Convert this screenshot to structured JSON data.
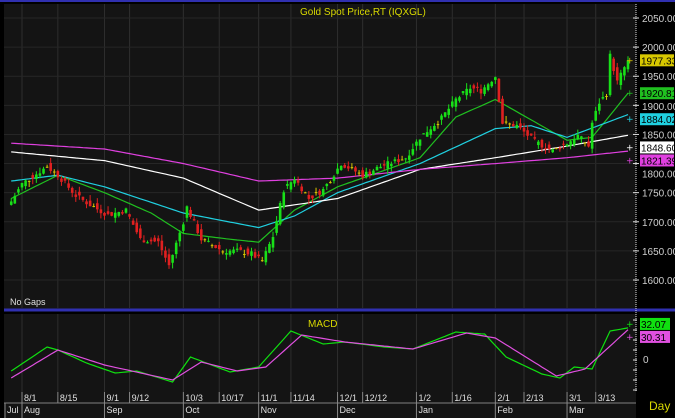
{
  "colors": {
    "background": "#141414",
    "up": "#18e018",
    "down": "#e02020",
    "doji": "#d8c800",
    "title": "#d8d800",
    "frame": "#3030b0",
    "ma20": "#20c020",
    "ma50": "#20d0e0",
    "ma100": "#ffffff",
    "ma200": "#e040e0",
    "macd": "#10e010",
    "signal": "#e050e0"
  },
  "chart_data": [
    {
      "type": "candlestick",
      "title": "Gold Spot Price,RT (IQXGL)",
      "note": "No Gaps",
      "ylim": [
        1580,
        2075
      ],
      "yticks": [
        1600,
        1650,
        1700,
        1750,
        1800,
        1850,
        1900,
        1950,
        2000,
        2050
      ],
      "ytick_labels": [
        "1600.00",
        "1650.00",
        "1700.00",
        "1750.00",
        "1800.00",
        "1850.00",
        "1900.00",
        "1950.00",
        "2000.00",
        "2050.00"
      ],
      "close_keypoints": [
        [
          "7/27",
          1735
        ],
        [
          "8/1",
          1765
        ],
        [
          "8/10",
          1795
        ],
        [
          "8/15",
          1780
        ],
        [
          "8/22",
          1745
        ],
        [
          "8/29",
          1725
        ],
        [
          "9/2",
          1712
        ],
        [
          "9/9",
          1720
        ],
        [
          "9/15",
          1670
        ],
        [
          "9/22",
          1665
        ],
        [
          "9/27",
          1625
        ],
        [
          "10/3",
          1700
        ],
        [
          "10/4",
          1725
        ],
        [
          "10/10",
          1670
        ],
        [
          "10/18",
          1650
        ],
        [
          "10/24",
          1650
        ],
        [
          "10/28",
          1645
        ],
        [
          "11/2",
          1632
        ],
        [
          "11/7",
          1675
        ],
        [
          "11/10",
          1755
        ],
        [
          "11/15",
          1775
        ],
        [
          "11/21",
          1740
        ],
        [
          "11/25",
          1755
        ],
        [
          "12/2",
          1800
        ],
        [
          "12/12",
          1780
        ],
        [
          "12/19",
          1795
        ],
        [
          "12/28",
          1810
        ],
        [
          "1/3",
          1845
        ],
        [
          "1/11",
          1878
        ],
        [
          "1/17",
          1910
        ],
        [
          "1/23",
          1930
        ],
        [
          "1/26",
          1925
        ],
        [
          "2/1",
          1950
        ],
        [
          "2/3",
          1870
        ],
        [
          "2/9",
          1865
        ],
        [
          "2/16",
          1838
        ],
        [
          "2/23",
          1822
        ],
        [
          "3/1",
          1835
        ],
        [
          "3/6",
          1848
        ],
        [
          "3/9",
          1830
        ],
        [
          "3/10",
          1870
        ],
        [
          "3/14",
          1905
        ],
        [
          "3/16",
          1920
        ],
        [
          "3/17",
          1985
        ],
        [
          "3/21",
          1940
        ],
        [
          "3/24",
          1977.33
        ]
      ],
      "moving_averages": [
        {
          "key": "ma20",
          "last": "1920.81",
          "points": [
            [
              "7/27",
              1740
            ],
            [
              "8/15",
              1780
            ],
            [
              "9/1",
              1750
            ],
            [
              "9/20",
              1715
            ],
            [
              "10/3",
              1680
            ],
            [
              "10/20",
              1670
            ],
            [
              "11/1",
              1665
            ],
            [
              "11/15",
              1720
            ],
            [
              "12/1",
              1760
            ],
            [
              "1/3",
              1810
            ],
            [
              "1/17",
              1880
            ],
            [
              "2/1",
              1910
            ],
            [
              "2/15",
              1875
            ],
            [
              "3/1",
              1840
            ],
            [
              "3/10",
              1845
            ],
            [
              "3/24",
              1920.81
            ]
          ]
        },
        {
          "key": "ma50",
          "last": "1884.02",
          "points": [
            [
              "7/27",
              1770
            ],
            [
              "8/15",
              1780
            ],
            [
              "9/1",
              1760
            ],
            [
              "10/3",
              1715
            ],
            [
              "11/1",
              1690
            ],
            [
              "11/15",
              1710
            ],
            [
              "12/1",
              1750
            ],
            [
              "1/3",
              1800
            ],
            [
              "2/1",
              1860
            ],
            [
              "2/15",
              1865
            ],
            [
              "3/1",
              1845
            ],
            [
              "3/24",
              1884.02
            ]
          ]
        },
        {
          "key": "ma100",
          "last": "1848.60",
          "points": [
            [
              "7/27",
              1820
            ],
            [
              "9/1",
              1805
            ],
            [
              "10/3",
              1775
            ],
            [
              "11/1",
              1720
            ],
            [
              "12/1",
              1740
            ],
            [
              "1/3",
              1790
            ],
            [
              "2/1",
              1810
            ],
            [
              "3/1",
              1830
            ],
            [
              "3/24",
              1848.6
            ]
          ]
        },
        {
          "key": "ma200",
          "last": "1821.39",
          "points": [
            [
              "7/27",
              1835
            ],
            [
              "9/1",
              1825
            ],
            [
              "10/3",
              1800
            ],
            [
              "11/1",
              1770
            ],
            [
              "12/1",
              1775
            ],
            [
              "1/3",
              1790
            ],
            [
              "2/1",
              1800
            ],
            [
              "3/1",
              1810
            ],
            [
              "3/24",
              1821.39
            ]
          ]
        }
      ],
      "last_price": "1977.33"
    },
    {
      "type": "line",
      "title": "MACD",
      "ylim": [
        -32,
        44
      ],
      "ytick_labels": [
        "0"
      ],
      "series": [
        {
          "key": "macd",
          "last": "32.07",
          "points": [
            [
              "7/27",
              -11
            ],
            [
              "8/10",
              13
            ],
            [
              "8/15",
              10
            ],
            [
              "8/25",
              -3
            ],
            [
              "9/6",
              -13
            ],
            [
              "9/14",
              -11
            ],
            [
              "9/28",
              -22
            ],
            [
              "10/5",
              3
            ],
            [
              "10/20",
              -12
            ],
            [
              "11/1",
              -7
            ],
            [
              "11/14",
              29
            ],
            [
              "11/25",
              16
            ],
            [
              "12/5",
              18
            ],
            [
              "12/20",
              13
            ],
            [
              "12/30",
              11
            ],
            [
              "1/17",
              28
            ],
            [
              "1/27",
              26
            ],
            [
              "2/6",
              3
            ],
            [
              "2/20",
              -14
            ],
            [
              "2/27",
              -18
            ],
            [
              "3/3",
              -7
            ],
            [
              "3/10",
              -9
            ],
            [
              "3/17",
              29
            ],
            [
              "3/24",
              32.07
            ]
          ]
        },
        {
          "key": "signal",
          "last": "30.31",
          "points": [
            [
              "7/27",
              -18
            ],
            [
              "8/15",
              10
            ],
            [
              "9/1",
              -5
            ],
            [
              "9/28",
              -20
            ],
            [
              "10/10",
              -2
            ],
            [
              "10/24",
              -11
            ],
            [
              "11/3",
              -7
            ],
            [
              "11/17",
              25
            ],
            [
              "12/5",
              18
            ],
            [
              "12/30",
              11
            ],
            [
              "1/20",
              27
            ],
            [
              "2/1",
              22
            ],
            [
              "2/24",
              -16
            ],
            [
              "3/8",
              -9
            ],
            [
              "3/24",
              30.31
            ]
          ]
        }
      ]
    }
  ],
  "x_axis": {
    "day_ticks": [
      "8/1",
      "8/15",
      "9/1",
      "9/12",
      "10/3",
      "10/17",
      "11/1",
      "11/14",
      "12/1",
      "12/12",
      "1/2",
      "1/16",
      "2/1",
      "2/13",
      "3/1",
      "3/13"
    ],
    "month_ticks": [
      [
        "7/27",
        "Jul"
      ],
      [
        "8/1",
        "Aug"
      ],
      [
        "9/1",
        "Sep"
      ],
      [
        "10/3",
        "Oct"
      ],
      [
        "11/1",
        "Nov"
      ],
      [
        "12/1",
        "Dec"
      ],
      [
        "1/2",
        "Jan"
      ],
      [
        "2/1",
        "Feb"
      ],
      [
        "3/1",
        "Mar"
      ]
    ],
    "period": "Day"
  }
}
